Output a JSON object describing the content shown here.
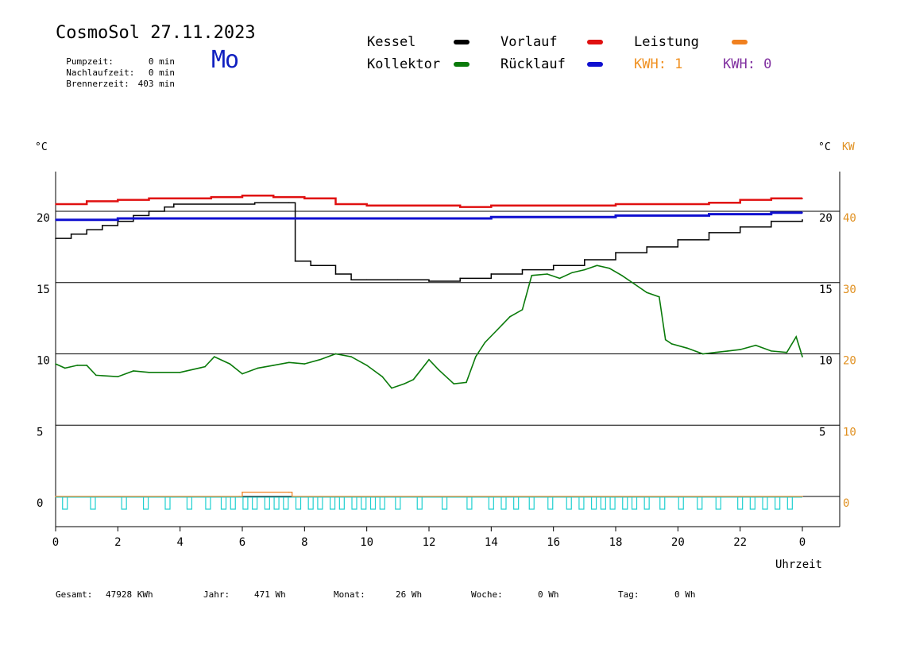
{
  "header": {
    "title": "CosmoSol 27.11.2023",
    "weekday": "Mo",
    "pumpzeit_label": "Pumpzeit:",
    "pumpzeit_value": "0 min",
    "nachlaufzeit_label": "Nachlaufzeit:",
    "nachlaufzeit_value": "0 min",
    "brennerzeit_label": "Brennerzeit:",
    "brennerzeit_value": "403 min"
  },
  "legend": {
    "kessel": "Kessel",
    "kollektor": "Kollektor",
    "vorlauf": "Vorlauf",
    "ruecklauf": "Rücklauf",
    "leistung": "Leistung",
    "kwh1": "KWH: 1",
    "kwh2": "KWH: 0"
  },
  "colors": {
    "kessel": "#000000",
    "kollektor": "#0a7a0a",
    "vorlauf": "#e01010",
    "ruecklauf": "#1010d0",
    "leistung": "#f08020",
    "kwh1": "#f09020",
    "kwh2": "#8030a0",
    "pump": "#20d0d0",
    "kw_axis": "#e09020"
  },
  "footer": {
    "gesamt_label": "Gesamt:",
    "gesamt_value": "47928 KWh",
    "jahr_label": "Jahr:",
    "jahr_value": "471 Wh",
    "monat_label": "Monat:",
    "monat_value": "26 Wh",
    "woche_label": "Woche:",
    "woche_value": "0 Wh",
    "tag_label": "Tag:",
    "tag_value": "0 Wh"
  },
  "chart_data": {
    "type": "line",
    "xlabel": "Uhrzeit",
    "ylabel_left": "°C",
    "ylabel_right": "°C",
    "ylabel_right_kw": "KW",
    "x_ticks": [
      "0",
      "2",
      "4",
      "6",
      "8",
      "10",
      "12",
      "14",
      "16",
      "18",
      "20",
      "22",
      "0"
    ],
    "x_range": [
      0,
      24
    ],
    "y_left_range": [
      -1.5,
      23.5
    ],
    "y_left_ticks": [
      "0",
      "5",
      "10",
      "15",
      "20"
    ],
    "y_right_ticks": [
      "5",
      "10",
      "15",
      "20"
    ],
    "y_kw_ticks": [
      "0",
      "10",
      "20",
      "30",
      "40"
    ],
    "gridlines": [
      0,
      5,
      10,
      15,
      20
    ],
    "series": [
      {
        "name": "Kessel",
        "x": [
          0,
          0.5,
          1,
          1.5,
          2,
          2.5,
          3,
          3.5,
          3.8,
          6.4,
          7.5,
          7.7,
          8.2,
          9,
          9.5,
          10,
          11,
          12,
          13,
          14,
          15,
          16,
          17,
          18,
          19,
          20,
          21,
          22,
          23,
          24
        ],
        "values": [
          18.1,
          18.4,
          18.7,
          19,
          19.3,
          19.7,
          20,
          20.3,
          20.5,
          20.6,
          20.6,
          16.5,
          16.2,
          15.6,
          15.2,
          15.2,
          15.2,
          15.1,
          15.3,
          15.6,
          15.9,
          16.2,
          16.6,
          17.1,
          17.5,
          18,
          18.5,
          18.9,
          19.3,
          19.4
        ]
      },
      {
        "name": "Kollektor",
        "x": [
          0,
          0.3,
          0.7,
          1,
          1.3,
          2,
          2.5,
          3,
          4,
          4.8,
          5.1,
          5.6,
          6,
          6.5,
          7,
          7.5,
          8,
          8.5,
          9,
          9.5,
          10,
          10.5,
          10.8,
          11.2,
          11.5,
          12,
          12.3,
          12.8,
          13.2,
          13.5,
          13.8,
          14.2,
          14.6,
          15,
          15.3,
          15.8,
          16.2,
          16.6,
          17,
          17.4,
          17.8,
          18.2,
          18.6,
          19,
          19.4,
          19.6,
          19.8,
          20.3,
          20.8,
          21.2,
          21.6,
          22,
          22.5,
          23,
          23.5,
          23.8,
          24
        ],
        "values": [
          9.3,
          9,
          9.2,
          9.2,
          8.5,
          8.4,
          8.8,
          8.7,
          8.7,
          9.1,
          9.8,
          9.3,
          8.6,
          9,
          9.2,
          9.4,
          9.3,
          9.6,
          10,
          9.8,
          9.2,
          8.4,
          7.6,
          7.9,
          8.2,
          9.6,
          8.9,
          7.9,
          8,
          9.8,
          10.8,
          11.7,
          12.6,
          13.1,
          15.5,
          15.6,
          15.3,
          15.7,
          15.9,
          16.2,
          16,
          15.5,
          14.9,
          14.3,
          14,
          11,
          10.7,
          10.4,
          10,
          10.1,
          10.2,
          10.3,
          10.6,
          10.2,
          10.1,
          11.2,
          9.8
        ]
      },
      {
        "name": "Vorlauf",
        "x": [
          0,
          1,
          2,
          3,
          4,
          5,
          6,
          7,
          8,
          9,
          10,
          11,
          12,
          13,
          14,
          15,
          16,
          17,
          18,
          19,
          20,
          21,
          22,
          23,
          24
        ],
        "values": [
          20.5,
          20.7,
          20.8,
          20.9,
          20.9,
          21,
          21.1,
          21,
          20.9,
          20.5,
          20.4,
          20.4,
          20.4,
          20.3,
          20.4,
          20.4,
          20.4,
          20.4,
          20.5,
          20.5,
          20.5,
          20.6,
          20.8,
          20.9,
          20.9
        ]
      },
      {
        "name": "Rücklauf",
        "x": [
          0,
          1,
          2,
          3,
          4,
          5,
          6,
          7,
          8,
          9,
          10,
          11,
          12,
          13,
          14,
          15,
          16,
          17,
          18,
          19,
          20,
          21,
          22,
          23,
          24
        ],
        "values": [
          19.4,
          19.4,
          19.5,
          19.5,
          19.5,
          19.5,
          19.5,
          19.5,
          19.5,
          19.5,
          19.5,
          19.5,
          19.5,
          19.5,
          19.6,
          19.6,
          19.6,
          19.6,
          19.7,
          19.7,
          19.7,
          19.8,
          19.8,
          19.9,
          19.9
        ]
      },
      {
        "name": "Leistung",
        "x": [
          0,
          5.9,
          6,
          7.5,
          7.6,
          24
        ],
        "values": [
          0,
          0,
          0.3,
          0.3,
          0,
          0
        ]
      }
    ],
    "pump_pulses": [
      0.3,
      1.2,
      2.2,
      2.9,
      3.6,
      4.3,
      4.9,
      5.4,
      5.7,
      6.1,
      6.4,
      6.8,
      7.1,
      7.4,
      7.8,
      8.2,
      8.5,
      8.9,
      9.2,
      9.6,
      9.9,
      10.2,
      10.5,
      11,
      11.7,
      12.5,
      13.3,
      14.0,
      14.4,
      14.8,
      15.3,
      15.9,
      16.5,
      16.9,
      17.3,
      17.6,
      17.9,
      18.3,
      18.6,
      19.0,
      19.5,
      20.1,
      20.7,
      21.3,
      22.0,
      22.4,
      22.8,
      23.2,
      23.6
    ]
  }
}
